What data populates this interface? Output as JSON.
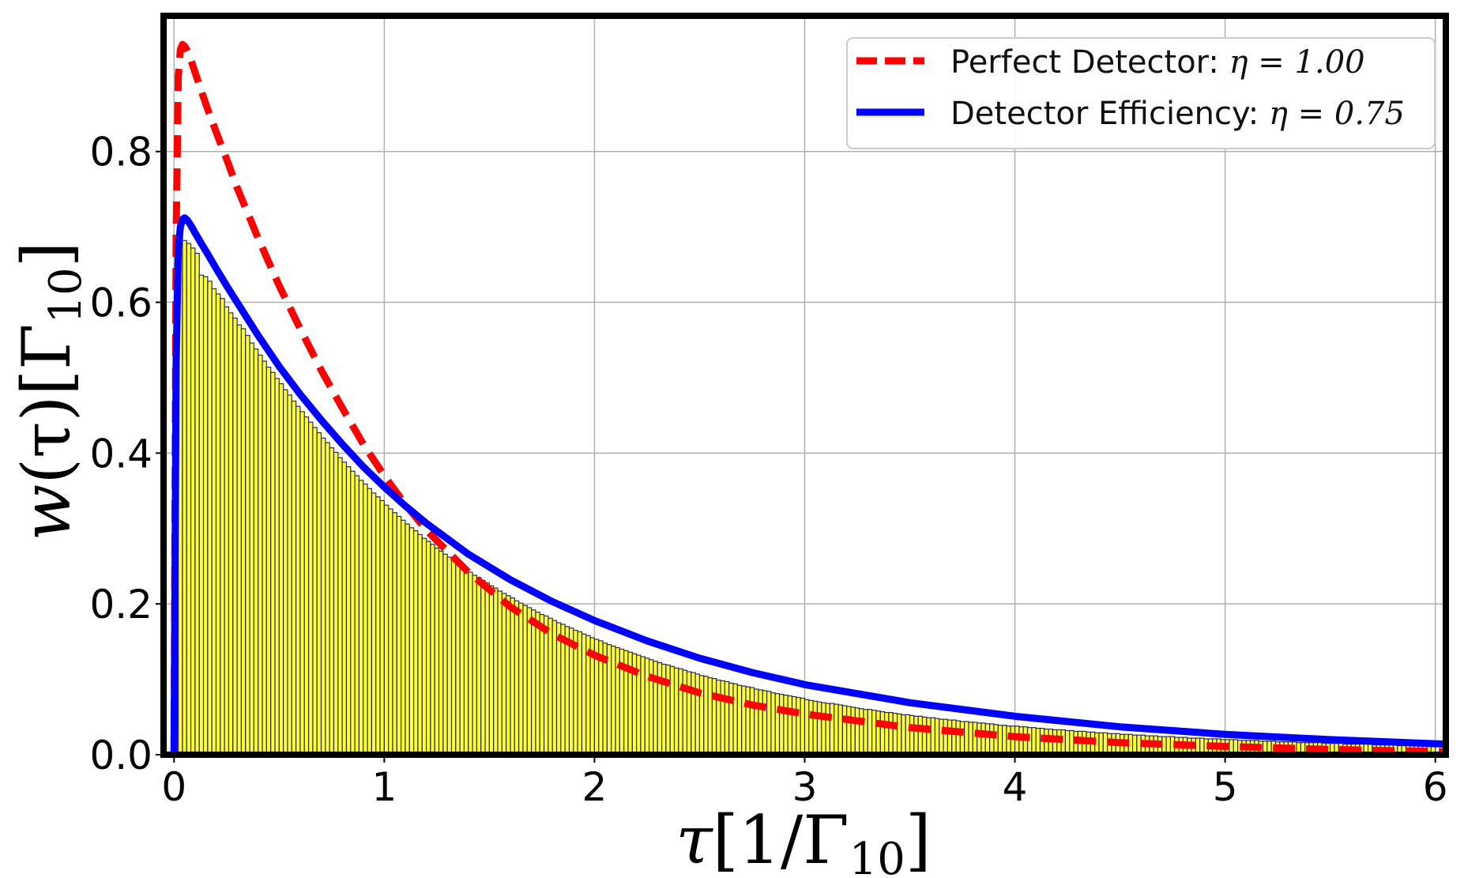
{
  "chart_data": {
    "type": "bar",
    "xlabel": {
      "main": "τ",
      "bracket_open": "[",
      "unit": "1/Γ",
      "sub": "10",
      "bracket_close": "]"
    },
    "ylabel": {
      "main": "w",
      "arg": "(τ)",
      "bracket_open": "[",
      "unit": "Γ",
      "sub": "10",
      "bracket_close": "]"
    },
    "xlim": [
      -0.05,
      6.05
    ],
    "ylim": [
      0,
      0.98
    ],
    "x_ticks": [
      0,
      1,
      2,
      3,
      4,
      5,
      6
    ],
    "x_tick_labels": [
      "0",
      "1",
      "2",
      "3",
      "4",
      "5",
      "6"
    ],
    "y_ticks": [
      0.0,
      0.2,
      0.4,
      0.6,
      0.8
    ],
    "y_tick_labels": [
      "0.0",
      "0.2",
      "0.4",
      "0.6",
      "0.8"
    ],
    "grid": true,
    "legend_position": "top-right",
    "histogram": {
      "name": "",
      "bin_width": 0.02,
      "x_start": 0.02,
      "color": "#ffff33",
      "edge_color": "#2a2a55",
      "values": [
        0.69,
        0.682,
        0.678,
        0.672,
        0.665,
        0.636,
        0.634,
        0.628,
        0.618,
        0.611,
        0.605,
        0.594,
        0.586,
        0.579,
        0.57,
        0.565,
        0.556,
        0.546,
        0.538,
        0.53,
        0.522,
        0.514,
        0.507,
        0.499,
        0.492,
        0.484,
        0.477,
        0.469,
        0.462,
        0.455,
        0.448,
        0.441,
        0.434,
        0.427,
        0.42,
        0.414,
        0.407,
        0.401,
        0.394,
        0.388,
        0.382,
        0.376,
        0.37,
        0.364,
        0.359,
        0.353,
        0.347,
        0.342,
        0.337,
        0.331,
        0.326,
        0.321,
        0.316,
        0.311,
        0.306,
        0.301,
        0.297,
        0.292,
        0.287,
        0.283,
        0.279,
        0.274,
        0.27,
        0.266,
        0.262,
        0.258,
        0.254,
        0.25,
        0.246,
        0.242,
        0.238,
        0.235,
        0.231,
        0.228,
        0.224,
        0.221,
        0.217,
        0.214,
        0.211,
        0.208,
        0.204,
        0.201,
        0.198,
        0.195,
        0.192,
        0.189,
        0.186,
        0.184,
        0.181,
        0.178,
        0.175,
        0.173,
        0.17,
        0.168,
        0.165,
        0.163,
        0.16,
        0.158,
        0.155,
        0.153,
        0.151,
        0.148,
        0.146,
        0.144,
        0.142,
        0.14,
        0.138,
        0.136,
        0.134,
        0.132,
        0.13,
        0.128,
        0.126,
        0.124,
        0.122,
        0.12,
        0.119,
        0.117,
        0.115,
        0.114,
        0.112,
        0.11,
        0.109,
        0.107,
        0.105,
        0.104,
        0.102,
        0.101,
        0.099,
        0.098,
        0.097,
        0.095,
        0.094,
        0.092,
        0.091,
        0.09,
        0.089,
        0.087,
        0.086,
        0.085,
        0.084,
        0.082,
        0.081,
        0.08,
        0.079,
        0.078,
        0.077,
        0.076,
        0.075,
        0.073,
        0.072,
        0.071,
        0.07,
        0.069,
        0.068,
        0.068,
        0.067,
        0.066,
        0.065,
        0.064,
        0.063,
        0.062,
        0.061,
        0.06,
        0.06,
        0.059,
        0.058,
        0.057,
        0.056,
        0.056,
        0.055,
        0.054,
        0.053,
        0.053,
        0.052,
        0.051,
        0.051,
        0.05,
        0.049,
        0.049,
        0.048,
        0.047,
        0.047,
        0.046,
        0.046,
        0.045,
        0.044,
        0.044,
        0.043,
        0.043,
        0.042,
        0.042,
        0.041,
        0.041,
        0.04,
        0.039,
        0.039,
        0.038,
        0.038,
        0.038,
        0.037,
        0.037,
        0.036,
        0.036,
        0.035,
        0.035,
        0.034,
        0.034,
        0.033,
        0.033,
        0.033,
        0.032,
        0.032,
        0.031,
        0.031,
        0.031,
        0.03,
        0.03,
        0.029,
        0.029,
        0.029,
        0.028,
        0.028,
        0.028,
        0.027,
        0.027,
        0.027,
        0.026,
        0.026,
        0.026,
        0.025,
        0.025,
        0.025,
        0.024,
        0.024,
        0.024,
        0.024,
        0.023,
        0.023,
        0.023,
        0.022,
        0.022,
        0.022,
        0.022,
        0.021,
        0.021,
        0.021,
        0.021,
        0.02,
        0.02,
        0.02,
        0.02,
        0.019,
        0.019,
        0.019,
        0.019,
        0.019,
        0.018,
        0.018,
        0.018,
        0.018,
        0.017,
        0.017,
        0.017,
        0.017,
        0.017,
        0.016,
        0.016,
        0.016,
        0.016,
        0.016,
        0.016,
        0.015,
        0.015,
        0.015,
        0.015,
        0.015,
        0.014,
        0.014,
        0.014,
        0.014,
        0.014,
        0.014,
        0.014,
        0.013,
        0.013,
        0.013,
        0.013,
        0.013,
        0.013,
        0.012,
        0.012,
        0.012,
        0.012,
        0.012,
        0.012,
        0.012,
        0.011,
        0.011
      ]
    },
    "series": [
      {
        "name_text": "Perfect Detector: ",
        "name_eq": "η = 1.00",
        "color": "#ff0000",
        "style": "dashed",
        "x": [
          0.0,
          0.01,
          0.02,
          0.03,
          0.04,
          0.05,
          0.06,
          0.08,
          0.1,
          0.13,
          0.16,
          0.2,
          0.25,
          0.3,
          0.4,
          0.5,
          0.6,
          0.7,
          0.8,
          0.9,
          1.0,
          1.1,
          1.2,
          1.4,
          1.6,
          1.8,
          2.0,
          2.25,
          2.5,
          2.75,
          3.0,
          3.5,
          4.0,
          4.5,
          5.0,
          5.5,
          6.05
        ],
        "y": [
          0.0,
          0.69,
          0.9,
          0.935,
          0.942,
          0.94,
          0.935,
          0.922,
          0.905,
          0.88,
          0.856,
          0.826,
          0.79,
          0.752,
          0.685,
          0.622,
          0.565,
          0.51,
          0.46,
          0.412,
          0.37,
          0.332,
          0.298,
          0.242,
          0.196,
          0.16,
          0.132,
          0.104,
          0.082,
          0.066,
          0.054,
          0.036,
          0.024,
          0.016,
          0.011,
          0.007,
          0.004
        ]
      },
      {
        "name_text": "Detector Efficiency: ",
        "name_eq": "η = 0.75",
        "color": "#0000ff",
        "style": "solid",
        "x": [
          0.0,
          0.01,
          0.02,
          0.03,
          0.04,
          0.05,
          0.06,
          0.08,
          0.1,
          0.13,
          0.16,
          0.2,
          0.25,
          0.3,
          0.4,
          0.5,
          0.6,
          0.7,
          0.8,
          0.9,
          1.0,
          1.1,
          1.2,
          1.4,
          1.6,
          1.8,
          2.0,
          2.25,
          2.5,
          2.75,
          3.0,
          3.5,
          4.0,
          4.5,
          5.0,
          5.5,
          6.05
        ],
        "y": [
          0.0,
          0.52,
          0.67,
          0.7,
          0.71,
          0.712,
          0.71,
          0.702,
          0.692,
          0.678,
          0.664,
          0.645,
          0.622,
          0.6,
          0.556,
          0.515,
          0.478,
          0.444,
          0.412,
          0.382,
          0.355,
          0.33,
          0.307,
          0.266,
          0.232,
          0.203,
          0.178,
          0.151,
          0.128,
          0.109,
          0.093,
          0.069,
          0.051,
          0.037,
          0.027,
          0.02,
          0.014
        ]
      }
    ]
  }
}
